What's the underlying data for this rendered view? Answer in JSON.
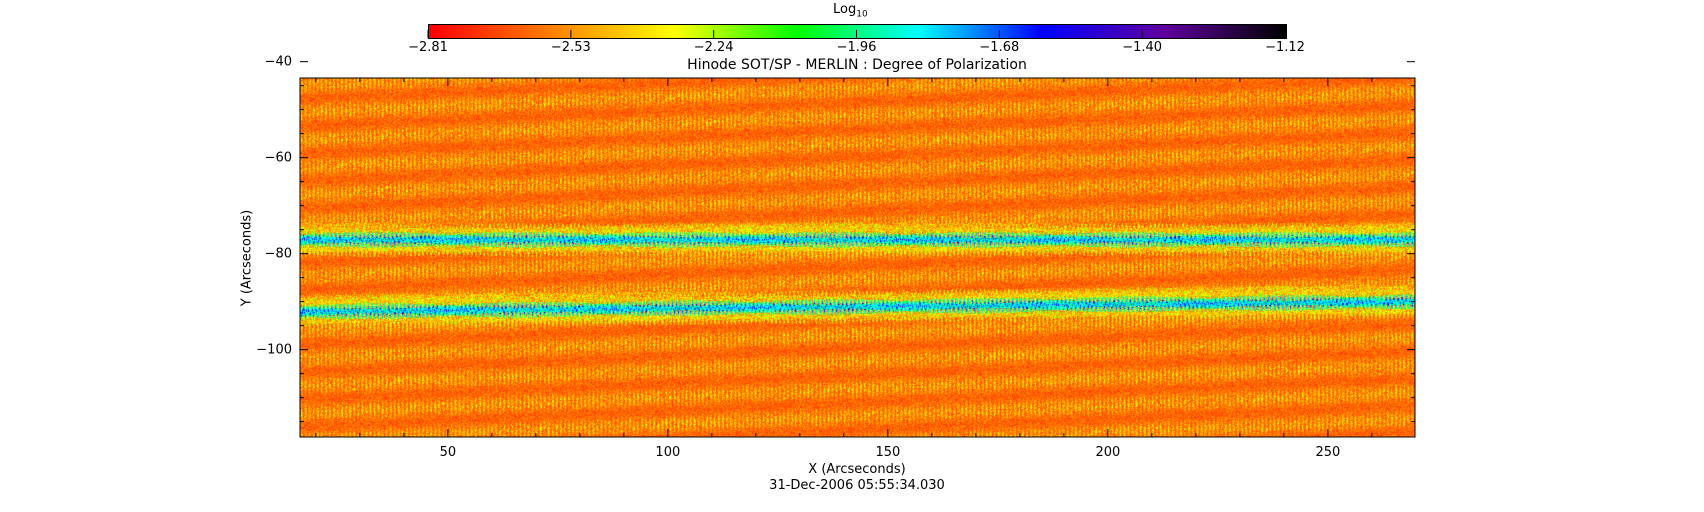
{
  "chart_data": {
    "type": "heatmap",
    "title": "Hinode SOT/SP - MERLIN : Degree of Polarization",
    "xlabel": "X (Arcseconds)",
    "ylabel": "Y (Arcseconds)",
    "xlim": [
      16.4,
      269.8
    ],
    "ylim": [
      -118.2,
      -43.4
    ],
    "xticks": [
      50,
      100,
      150,
      200,
      250
    ],
    "yticks": [
      -40,
      -60,
      -80,
      -100
    ],
    "colorbar": {
      "label_base": "Log",
      "label_sub": "10",
      "range": [
        -2.81,
        -1.12
      ],
      "ticks": [
        "-2.81",
        "-2.53",
        "-2.24",
        "-1.96",
        "-1.68",
        "-1.40",
        "-1.12"
      ],
      "colormap": [
        "#ff0000",
        "#ff8000",
        "#ffff00",
        "#00ff00",
        "#00ffff",
        "#0000ff",
        "#6000a0",
        "#000000"
      ]
    },
    "features": [
      {
        "kind": "strong-band",
        "y": -77
      },
      {
        "kind": "strong-band",
        "y": -92
      }
    ],
    "timestamp": "31-Dec-2006 05:55:34.030"
  }
}
